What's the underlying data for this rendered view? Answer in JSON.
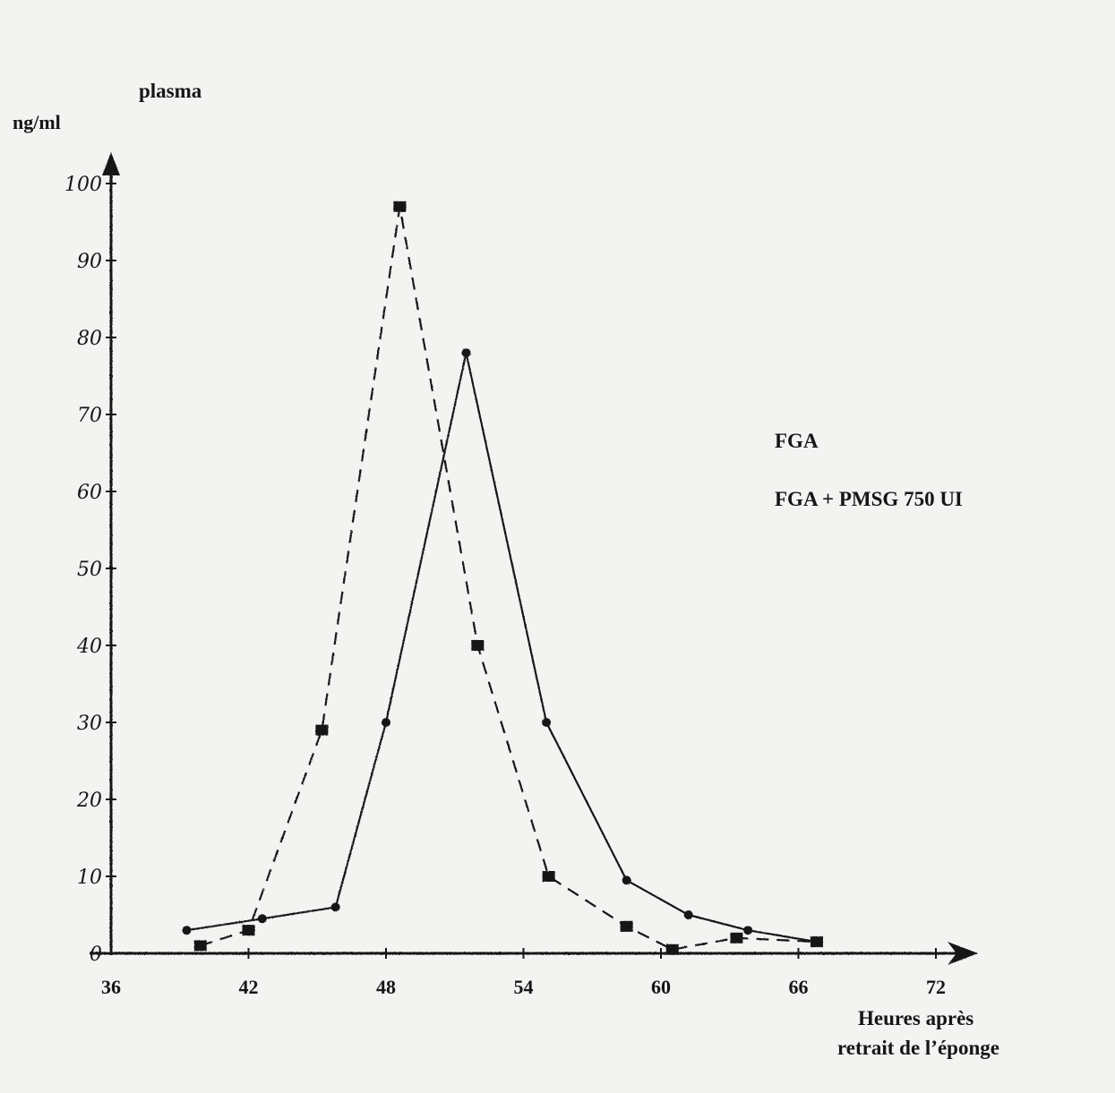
{
  "chart_data": {
    "type": "line",
    "title": "plasma",
    "ylabel": "ng/ml",
    "xlabel_lines": [
      "Heures après",
      "retrait  de l’éponge"
    ],
    "ylim": [
      0,
      100
    ],
    "xlim": [
      36,
      72
    ],
    "x_ticks": [
      36,
      42,
      48,
      54,
      60,
      66,
      72
    ],
    "y_ticks": [
      0,
      10,
      20,
      30,
      40,
      50,
      60,
      70,
      80,
      90,
      100
    ],
    "x_tick_labels": [
      "36",
      "42",
      "48",
      "54",
      "60",
      "66",
      "72"
    ],
    "y_tick_labels": [
      "0",
      "10",
      "20",
      "30",
      "40",
      "50",
      "60",
      "70",
      "80",
      "90",
      "100"
    ],
    "legend_position": "right",
    "series": [
      {
        "name": "FGA",
        "style": "solid",
        "marker": "circle",
        "points": [
          [
            39.3,
            3
          ],
          [
            42.6,
            4.5
          ],
          [
            45.8,
            6
          ],
          [
            48,
            30
          ],
          [
            51.5,
            78
          ],
          [
            55,
            30
          ],
          [
            58.5,
            9.5
          ],
          [
            61.2,
            5
          ],
          [
            63.8,
            3
          ],
          [
            66.8,
            1.5
          ]
        ]
      },
      {
        "name": "FGA + PMSG 750 UI",
        "style": "dashed",
        "marker": "square",
        "points": [
          [
            39.9,
            1
          ],
          [
            42,
            3
          ],
          [
            45.2,
            29
          ],
          [
            48.6,
            97
          ],
          [
            52,
            40
          ],
          [
            55.1,
            10
          ],
          [
            58.5,
            3.5
          ],
          [
            60.5,
            0.5
          ],
          [
            63.3,
            2
          ],
          [
            66.8,
            1.5
          ]
        ]
      }
    ]
  },
  "colors": {
    "ink": "#161616",
    "background": "#f3f3f1"
  }
}
